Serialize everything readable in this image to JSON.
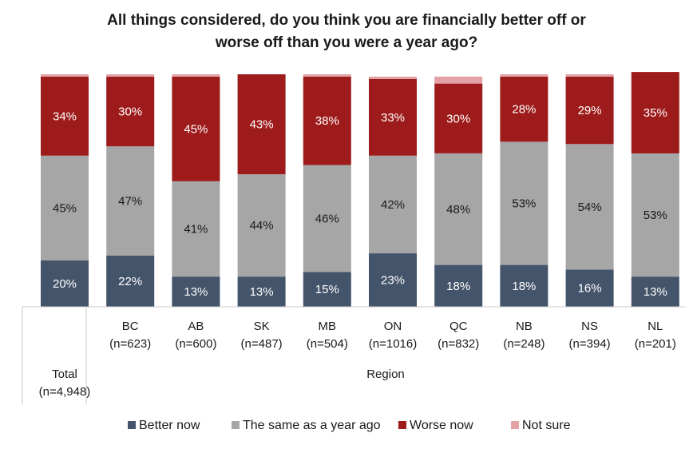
{
  "chart_data": {
    "type": "bar",
    "stacked": true,
    "title_lines": [
      "All things considered, do you think you are financially better off or",
      "worse off than you were a year ago?"
    ],
    "categories": [
      {
        "name": "Total",
        "n": "(n=4,948)"
      },
      {
        "name": "BC",
        "n": "(n=623)"
      },
      {
        "name": "AB",
        "n": "(n=600)"
      },
      {
        "name": "SK",
        "n": "(n=487)"
      },
      {
        "name": "MB",
        "n": "(n=504)"
      },
      {
        "name": "ON",
        "n": "(n=1016)"
      },
      {
        "name": "QC",
        "n": "(n=832)"
      },
      {
        "name": "NB",
        "n": "(n=248)"
      },
      {
        "name": "NS",
        "n": "(n=394)"
      },
      {
        "name": "NL",
        "n": "(n=201)"
      }
    ],
    "group_label": "Region",
    "series": [
      {
        "name": "Better now",
        "color": "#44546a",
        "label_color": "#ffffff",
        "values": [
          20,
          22,
          13,
          13,
          15,
          23,
          18,
          18,
          16,
          13
        ]
      },
      {
        "name": "The same as a year ago",
        "color": "#a6a6a6",
        "label_color": "#1a1a1a",
        "values": [
          45,
          47,
          41,
          44,
          46,
          42,
          48,
          53,
          54,
          53
        ]
      },
      {
        "name": "Worse now",
        "color": "#9e1b1b",
        "label_color": "#ffffff",
        "values": [
          34,
          30,
          45,
          43,
          38,
          33,
          30,
          28,
          29,
          35
        ]
      },
      {
        "name": "Not sure",
        "color": "#e3a1a6",
        "label_color": "#1a1a1a",
        "values": [
          1,
          1,
          1,
          0,
          1,
          1,
          3,
          1,
          1,
          0
        ]
      }
    ],
    "label_series": [
      "Better now",
      "The same as a year ago",
      "Worse now"
    ],
    "ylim": [
      0,
      100
    ],
    "legend_position": "bottom"
  }
}
